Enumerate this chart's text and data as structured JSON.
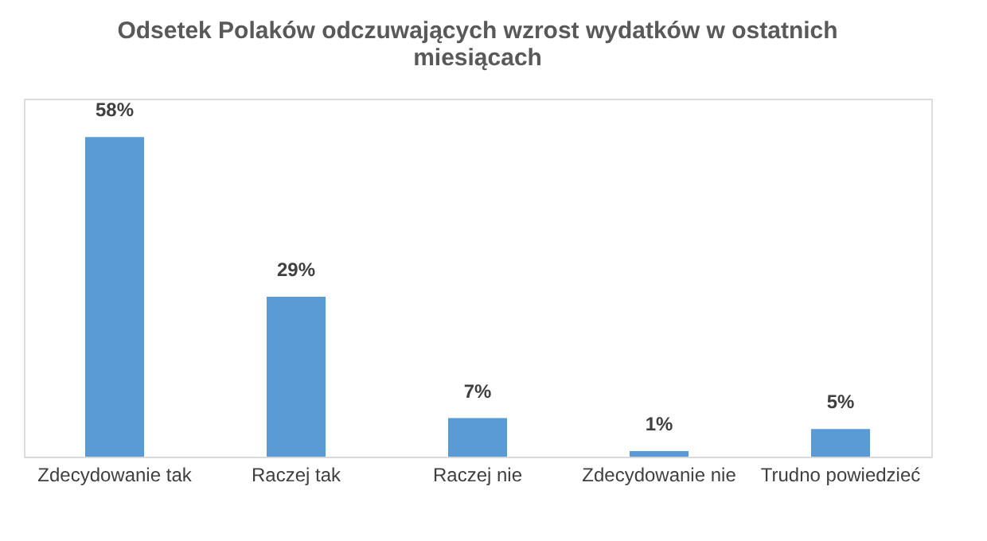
{
  "chart_data": {
    "type": "bar",
    "title": "Odsetek Polaków odczuwających wzrost wydatków w ostatnich miesiącach",
    "categories": [
      "Zdecydowanie tak",
      "Raczej tak",
      "Raczej nie",
      "Zdecydowanie nie",
      "Trudno powiedzieć"
    ],
    "values": [
      58,
      29,
      7,
      1,
      5
    ],
    "value_labels": [
      "58%",
      "29%",
      "7%",
      "1%",
      "5%"
    ],
    "color": "#5b9bd5",
    "grid": false
  }
}
